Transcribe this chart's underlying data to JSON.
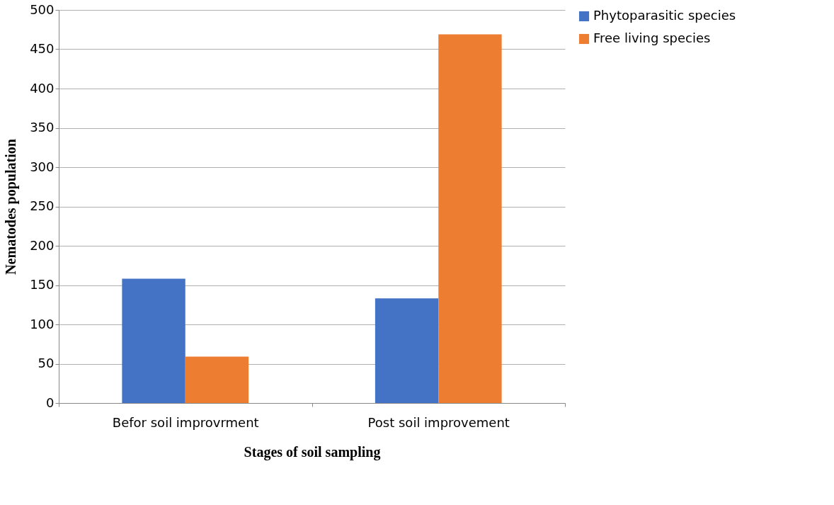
{
  "chart_data": {
    "type": "bar",
    "xlabel": "Stages of soil sampling",
    "ylabel": "Nematodes population",
    "categories": [
      "Befor soil improvrment",
      "Post soil improvement"
    ],
    "series": [
      {
        "name": "Phytoparasitic species",
        "color": "#4472c4",
        "values": [
          158,
          133
        ]
      },
      {
        "name": "Free living species",
        "color": "#ed7d31",
        "values": [
          59,
          469
        ]
      }
    ],
    "ylim": [
      0,
      500
    ],
    "yticks": [
      0,
      50,
      100,
      150,
      200,
      250,
      300,
      350,
      400,
      450,
      500
    ],
    "grid": "y",
    "legend": "right"
  }
}
